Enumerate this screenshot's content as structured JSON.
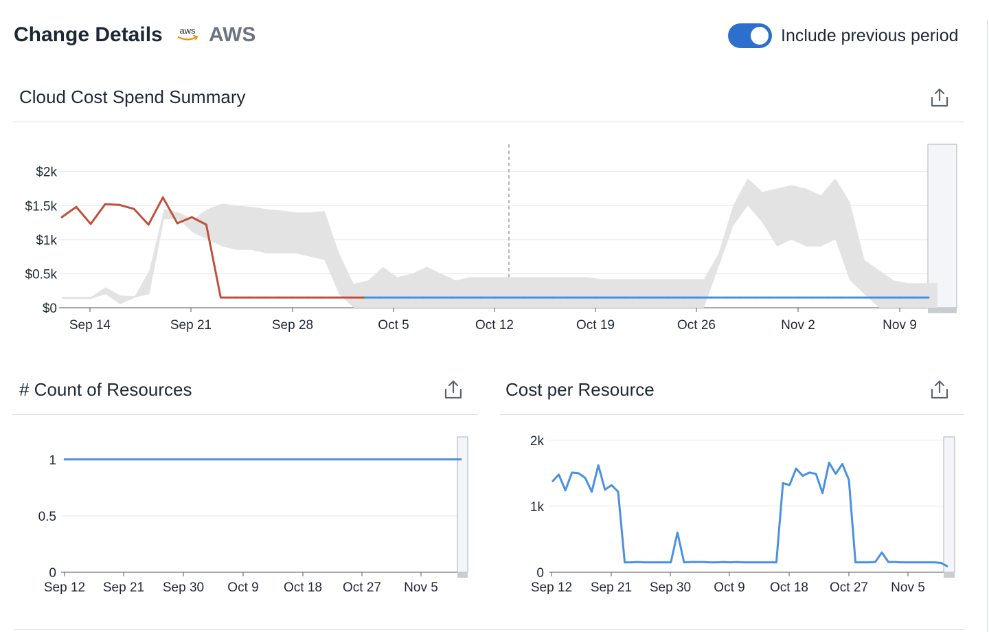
{
  "header": {
    "title": "Change Details",
    "provider_logo_text": "aws",
    "provider": "AWS",
    "toggle_label": "Include previous period",
    "toggle_on": true,
    "toggle_color": "#2c6fcc"
  },
  "panels": {
    "spend": {
      "title": "Cloud Cost Spend Summary",
      "export_icon": "share-export-icon"
    },
    "count": {
      "title": "# Count of Resources",
      "export_icon": "share-export-icon"
    },
    "cost_per": {
      "title": "Cost per Resource",
      "export_icon": "share-export-icon"
    }
  },
  "colors": {
    "current": "#4a90e2",
    "anomaly": "#c0503a",
    "band": "#e3e3e3",
    "grid": "#e8e8e8"
  },
  "chart_data": [
    {
      "type": "line",
      "title": "Cloud Cost Spend Summary",
      "y_ticks": [
        "$0",
        "$0.5k",
        "$1k",
        "$1.5k",
        "$2k"
      ],
      "ylim": [
        0,
        2400
      ],
      "x_ticks": [
        "Sep 14",
        "Sep 21",
        "Sep 28",
        "Oct 5",
        "Oct 12",
        "Oct 19",
        "Oct 26",
        "Nov 2",
        "Nov 9"
      ],
      "marker_tick": "Oct 12",
      "grid": true,
      "series": [
        {
          "values": [
            1330,
            1480,
            1230,
            1520,
            1510,
            1450,
            1220,
            1620,
            1240,
            1330,
            1220,
            150,
            150,
            150,
            150,
            150,
            150,
            150,
            150,
            150,
            150,
            150,
            150,
            150,
            150,
            150,
            150,
            150,
            150,
            150,
            150,
            150,
            150,
            150,
            150,
            150,
            150,
            150,
            150,
            150,
            150,
            150,
            150,
            150,
            150,
            150,
            150,
            150,
            150,
            150,
            150,
            150,
            150,
            150,
            150,
            150,
            150,
            150,
            150,
            150,
            150
          ],
          "anomaly": [
            1,
            1,
            1,
            1,
            1,
            1,
            1,
            1,
            1,
            1,
            1,
            1,
            1,
            1,
            1,
            1,
            1,
            1,
            1,
            0,
            1,
            0,
            0,
            0,
            0,
            0,
            0,
            0,
            0,
            0,
            0,
            0,
            0,
            0,
            0,
            0,
            0,
            0,
            0,
            0,
            0,
            0,
            0,
            0,
            0,
            0,
            0,
            0,
            0,
            0,
            0,
            0,
            0,
            0,
            0,
            0,
            0,
            0,
            0,
            0,
            0
          ]
        }
      ],
      "band_upper": [
        160,
        160,
        160,
        300,
        180,
        170,
        550,
        1450,
        1400,
        1300,
        1450,
        1530,
        1500,
        1480,
        1450,
        1430,
        1400,
        1400,
        1420,
        800,
        350,
        400,
        600,
        450,
        500,
        600,
        500,
        400,
        450,
        450,
        450,
        450,
        450,
        450,
        450,
        450,
        450,
        420,
        420,
        420,
        420,
        420,
        420,
        420,
        420,
        800,
        1500,
        1900,
        1700,
        1750,
        1800,
        1750,
        1650,
        1900,
        1550,
        700,
        550,
        400,
        360,
        360,
        360
      ],
      "band_lower": [
        130,
        130,
        130,
        200,
        50,
        150,
        200,
        1300,
        1300,
        1100,
        1000,
        900,
        850,
        850,
        800,
        800,
        800,
        750,
        700,
        200,
        0,
        0,
        0,
        0,
        0,
        0,
        0,
        0,
        0,
        0,
        0,
        0,
        0,
        0,
        0,
        0,
        0,
        0,
        0,
        0,
        0,
        0,
        0,
        0,
        0,
        600,
        1200,
        1500,
        1250,
        900,
        1000,
        900,
        900,
        1000,
        400,
        200,
        0,
        0,
        0,
        0,
        0
      ]
    },
    {
      "type": "line",
      "title": "# Count of Resources",
      "y_ticks": [
        "0",
        "0.5",
        "1"
      ],
      "ylim": [
        0,
        1.2
      ],
      "x_ticks": [
        "Sep 12",
        "Sep 21",
        "Sep 30",
        "Oct 9",
        "Oct 18",
        "Oct 27",
        "Nov 5"
      ],
      "grid": true,
      "series": [
        {
          "values": [
            1,
            1
          ]
        }
      ]
    },
    {
      "type": "line",
      "title": "Cost per Resource",
      "y_ticks": [
        "0",
        "1k",
        "2k"
      ],
      "ylim": [
        0,
        2050
      ],
      "x_ticks": [
        "Sep 12",
        "Sep 21",
        "Sep 30",
        "Oct 9",
        "Oct 18",
        "Oct 27",
        "Nov 5"
      ],
      "grid": true,
      "series": [
        {
          "values": [
            1370,
            1480,
            1240,
            1510,
            1500,
            1430,
            1220,
            1620,
            1250,
            1320,
            1220,
            150,
            150,
            155,
            150,
            150,
            150,
            150,
            150,
            600,
            150,
            155,
            155,
            155,
            150,
            150,
            155,
            150,
            155,
            150,
            150,
            150,
            150,
            150,
            150,
            1350,
            1320,
            1570,
            1460,
            1510,
            1490,
            1200,
            1660,
            1490,
            1640,
            1400,
            150,
            150,
            150,
            155,
            300,
            155,
            155,
            150,
            150,
            150,
            150,
            150,
            150,
            140,
            85
          ]
        }
      ]
    }
  ]
}
